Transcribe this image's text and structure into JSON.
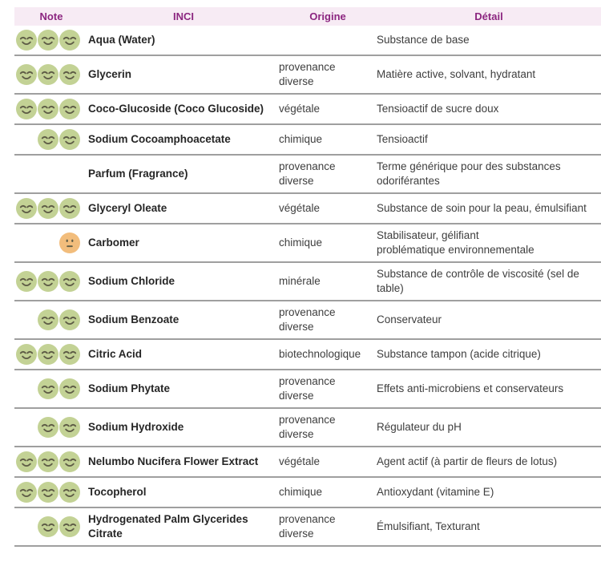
{
  "colors": {
    "header_bg": "#f7ebf4",
    "header_text": "#8c2680",
    "separator": "#9f9f9f",
    "inci_text": "#262626",
    "body_text": "#3e3e3e",
    "happy_face": "#c3d295",
    "neutral_face": "#f2bd7c",
    "face_features": "#5e5c46",
    "page_bg": "#ffffff"
  },
  "table": {
    "columns": [
      {
        "key": "note",
        "label": "Note"
      },
      {
        "key": "inci",
        "label": "INCI"
      },
      {
        "key": "origine",
        "label": "Origine"
      },
      {
        "key": "detail",
        "label": "Détail"
      }
    ],
    "rows": [
      {
        "note": {
          "icon": "happy-smiley-icon",
          "count": 3
        },
        "inci": "Aqua (Water)",
        "origine": "",
        "detail": "Substance de base"
      },
      {
        "note": {
          "icon": "happy-smiley-icon",
          "count": 3
        },
        "inci": "Glycerin",
        "origine": "provenance\ndiverse",
        "detail": "Matière active, solvant, hydratant"
      },
      {
        "note": {
          "icon": "happy-smiley-icon",
          "count": 3
        },
        "inci": "Coco-Glucoside (Coco Glucoside)",
        "origine": "végétale",
        "detail": "Tensioactif de sucre doux"
      },
      {
        "note": {
          "icon": "happy-smiley-icon",
          "count": 2
        },
        "inci": "Sodium Cocoamphoacetate",
        "origine": "chimique",
        "detail": "Tensioactif"
      },
      {
        "note": {
          "icon": "happy-smiley-icon",
          "count": 0
        },
        "inci": "Parfum (Fragrance)",
        "origine": "provenance\ndiverse",
        "detail": "Terme générique pour des substances\nodoriférantes"
      },
      {
        "note": {
          "icon": "happy-smiley-icon",
          "count": 3
        },
        "inci": "Glyceryl Oleate",
        "origine": "végétale",
        "detail": "Substance de soin pour la peau, émulsifiant"
      },
      {
        "note": {
          "icon": "neutral-smiley-icon",
          "count": 1
        },
        "inci": "Carbomer",
        "origine": "chimique",
        "detail": "Stabilisateur, gélifiant\nproblématique environnementale"
      },
      {
        "note": {
          "icon": "happy-smiley-icon",
          "count": 3
        },
        "inci": "Sodium Chloride",
        "origine": "minérale",
        "detail": "Substance de contrôle de viscosité (sel de\ntable)"
      },
      {
        "note": {
          "icon": "happy-smiley-icon",
          "count": 2
        },
        "inci": "Sodium Benzoate",
        "origine": "provenance\ndiverse",
        "detail": "Conservateur"
      },
      {
        "note": {
          "icon": "happy-smiley-icon",
          "count": 3
        },
        "inci": "Citric Acid",
        "origine": "biotechnologique",
        "detail": "Substance tampon (acide citrique)"
      },
      {
        "note": {
          "icon": "happy-smiley-icon",
          "count": 2
        },
        "inci": "Sodium Phytate",
        "origine": "provenance\ndiverse",
        "detail": "Effets anti-microbiens et conservateurs"
      },
      {
        "note": {
          "icon": "happy-smiley-icon",
          "count": 2
        },
        "inci": "Sodium Hydroxide",
        "origine": "provenance\ndiverse",
        "detail": "Régulateur du pH"
      },
      {
        "note": {
          "icon": "happy-smiley-icon",
          "count": 3
        },
        "inci": "Nelumbo Nucifera Flower Extract",
        "origine": "végétale",
        "detail": "Agent actif (à partir de fleurs de lotus)"
      },
      {
        "note": {
          "icon": "happy-smiley-icon",
          "count": 3
        },
        "inci": "Tocopherol",
        "origine": "chimique",
        "detail": "Antioxydant (vitamine E)"
      },
      {
        "note": {
          "icon": "happy-smiley-icon",
          "count": 2
        },
        "inci": "Hydrogenated Palm Glycerides Citrate",
        "origine": "provenance\ndiverse",
        "detail": "Émulsifiant, Texturant"
      }
    ]
  }
}
